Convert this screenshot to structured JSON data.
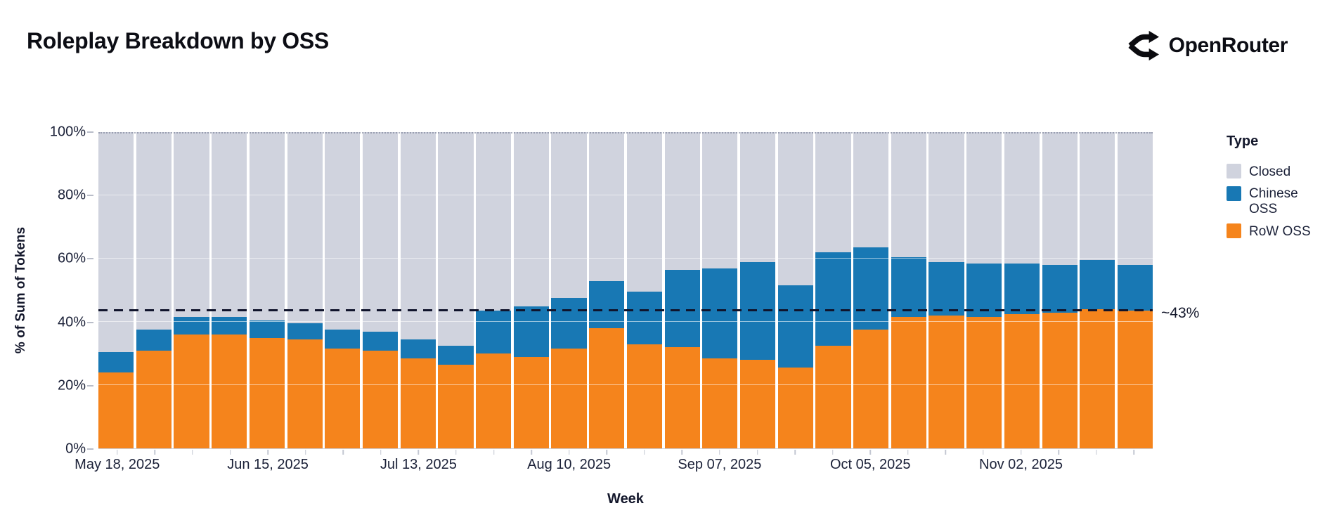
{
  "header": {
    "title": "Roleplay Breakdown by OSS",
    "brand_name": "OpenRouter",
    "brand_icon": "openrouter-fork-arrows-icon"
  },
  "chart_data": {
    "type": "bar",
    "stacked": true,
    "units": "percent",
    "title": "Roleplay Breakdown by OSS",
    "xlabel": "Week",
    "ylabel": "% of Sum of Tokens",
    "ylim": [
      0,
      100
    ],
    "y_ticks": [
      {
        "label": "0%",
        "value": 0
      },
      {
        "label": "20%",
        "value": 20
      },
      {
        "label": "40%",
        "value": 40
      },
      {
        "label": "60%",
        "value": 60
      },
      {
        "label": "80%",
        "value": 80
      },
      {
        "label": "100%",
        "value": 100
      }
    ],
    "grid": "horizontal every 20%, shown over bars",
    "categories": [
      "May 18, 2025",
      "May 25, 2025",
      "Jun 01, 2025",
      "Jun 08, 2025",
      "Jun 15, 2025",
      "Jun 22, 2025",
      "Jun 29, 2025",
      "Jul 06, 2025",
      "Jul 13, 2025",
      "Jul 20, 2025",
      "Jul 27, 2025",
      "Aug 03, 2025",
      "Aug 10, 2025",
      "Aug 17, 2025",
      "Aug 24, 2025",
      "Aug 31, 2025",
      "Sep 07, 2025",
      "Sep 14, 2025",
      "Sep 21, 2025",
      "Sep 28, 2025",
      "Oct 05, 2025",
      "Oct 12, 2025",
      "Oct 19, 2025",
      "Oct 26, 2025",
      "Nov 02, 2025",
      "Nov 09, 2025",
      "Nov 16, 2025",
      "Nov 23, 2025"
    ],
    "x_major_tick_labels": [
      "May 18, 2025",
      "Jun 15, 2025",
      "Jul 13, 2025",
      "Aug 10, 2025",
      "Sep 07, 2025",
      "Oct 05, 2025",
      "Nov 02, 2025"
    ],
    "x_major_tick_indices": [
      0,
      4,
      8,
      12,
      16,
      20,
      24
    ],
    "stack_order_bottom_to_top": [
      "RoW OSS",
      "Chinese OSS",
      "Closed"
    ],
    "series": [
      {
        "name": "RoW OSS",
        "color": "#f5841c",
        "values": [
          24,
          31,
          36,
          36,
          35,
          34.5,
          31.5,
          31,
          28.5,
          26.5,
          30,
          29,
          31.5,
          38,
          33,
          32,
          28.5,
          28,
          25.5,
          32.5,
          37.5,
          41.5,
          42,
          41.5,
          42.5,
          43,
          44,
          43.5
        ]
      },
      {
        "name": "Chinese OSS",
        "color": "#1878b4",
        "values": [
          6.5,
          6.5,
          5.5,
          5.5,
          5.5,
          5,
          6,
          6,
          6,
          6,
          13.5,
          16,
          16,
          15,
          16.5,
          24.5,
          28.5,
          31,
          26,
          29.5,
          26,
          19,
          17,
          17,
          16,
          15,
          15.5,
          14.5
        ]
      },
      {
        "name": "Closed",
        "color": "#d0d3de",
        "values": [
          69.5,
          62.5,
          58.5,
          58.5,
          59.5,
          60.5,
          62.5,
          63,
          65.5,
          67.5,
          56.5,
          55,
          52.5,
          47,
          50.5,
          43.5,
          43,
          41,
          48.5,
          38,
          36.5,
          39.5,
          41,
          41.5,
          41.5,
          42,
          40.5,
          42
        ]
      }
    ],
    "legend": {
      "title": "Type",
      "position": "right",
      "items_top_to_bottom": [
        "Closed",
        "Chinese OSS",
        "RoW OSS"
      ]
    },
    "reference_line": {
      "y": 43.5,
      "style": "dashed",
      "color": "#10142c",
      "label": "~43%"
    }
  }
}
